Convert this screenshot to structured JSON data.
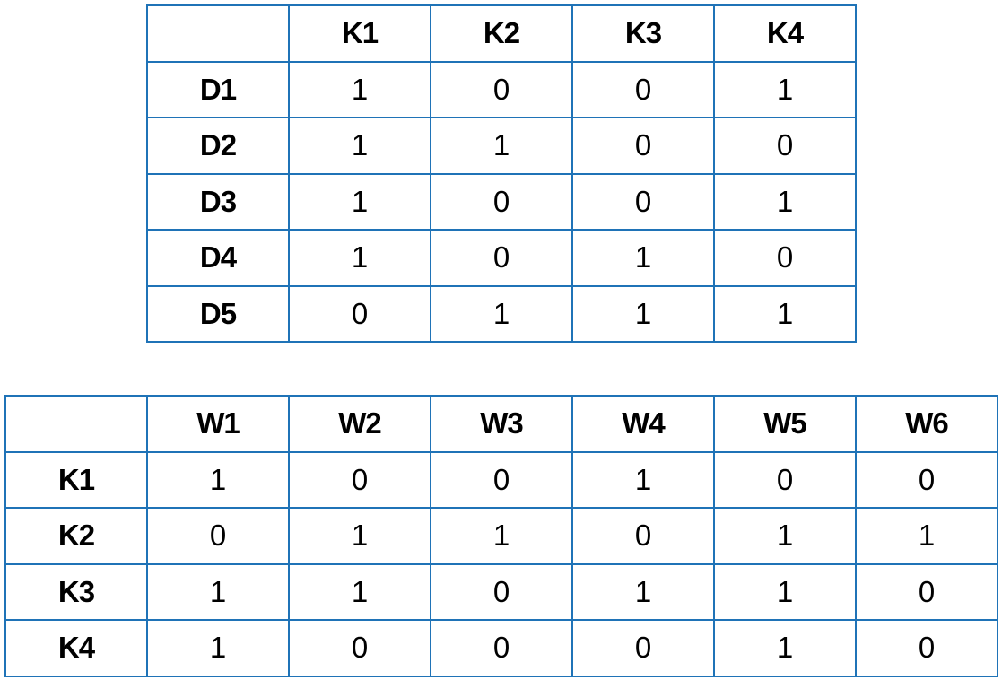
{
  "doc_keyword_table": {
    "corner": "",
    "columns": [
      "K1",
      "K2",
      "K3",
      "K4"
    ],
    "rows": [
      {
        "label": "D1",
        "values": [
          "1",
          "0",
          "0",
          "1"
        ]
      },
      {
        "label": "D2",
        "values": [
          "1",
          "1",
          "0",
          "0"
        ]
      },
      {
        "label": "D3",
        "values": [
          "1",
          "0",
          "0",
          "1"
        ]
      },
      {
        "label": "D4",
        "values": [
          "1",
          "0",
          "1",
          "0"
        ]
      },
      {
        "label": "D5",
        "values": [
          "0",
          "1",
          "1",
          "1"
        ]
      }
    ]
  },
  "keyword_word_table": {
    "corner": "",
    "columns": [
      "W1",
      "W2",
      "W3",
      "W4",
      "W5",
      "W6"
    ],
    "rows": [
      {
        "label": "K1",
        "values": [
          "1",
          "0",
          "0",
          "1",
          "0",
          "0"
        ]
      },
      {
        "label": "K2",
        "values": [
          "0",
          "1",
          "1",
          "0",
          "1",
          "1"
        ]
      },
      {
        "label": "K3",
        "values": [
          "1",
          "1",
          "0",
          "1",
          "1",
          "0"
        ]
      },
      {
        "label": "K4",
        "values": [
          "1",
          "0",
          "0",
          "0",
          "1",
          "0"
        ]
      }
    ]
  },
  "colors": {
    "border": "#1f73b7"
  }
}
